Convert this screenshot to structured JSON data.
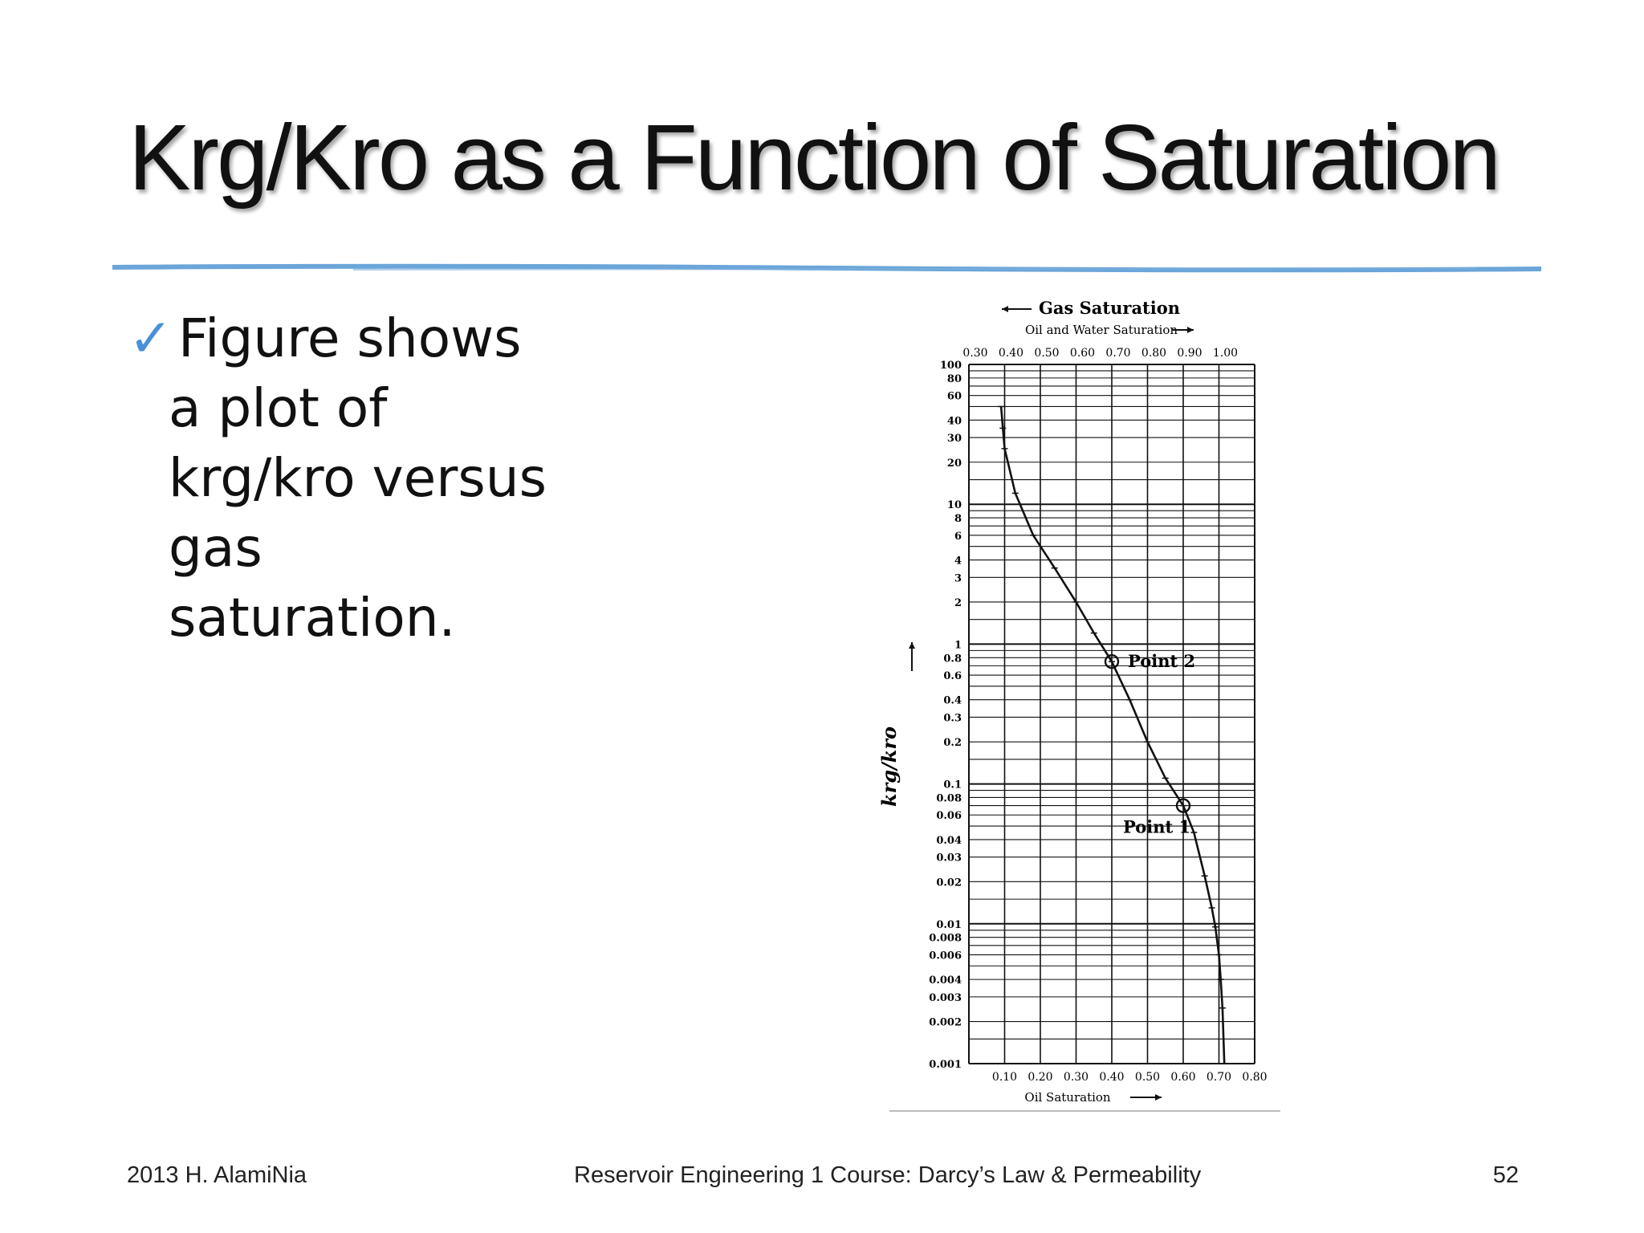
{
  "slide": {
    "title": "Krg/Kro as a Function of Saturation",
    "bullet_icon": "checkmark-icon",
    "bullet_lines": [
      "Figure shows",
      "a plot of",
      "krg/kro versus",
      "gas",
      "saturation."
    ]
  },
  "footer": {
    "left": "2013 H. AlamiNia",
    "center": "Reservoir Engineering 1 Course: Darcy’s Law & Permeability",
    "page": "52"
  },
  "colors": {
    "accent": "#4a90d9",
    "title_rule": "#5b9bd5"
  },
  "chart_data": {
    "type": "line",
    "title": "Gas Saturation",
    "top_axis_label": "Oil and Water Saturation",
    "bottom_axis_label": "Oil Saturation",
    "ylabel": "krg/kro",
    "yscale": "log",
    "ylim": [
      0.001,
      100
    ],
    "xlim": [
      0.0,
      0.8
    ],
    "grid": true,
    "top_ticks": [
      "0.30",
      "0.40",
      "0.50",
      "0.60",
      "0.70",
      "0.80",
      "0.90",
      "1.00"
    ],
    "bottom_ticks": [
      "0.10",
      "0.20",
      "0.30",
      "0.40",
      "0.50",
      "0.60",
      "0.70",
      "0.80"
    ],
    "y_ticks": [
      {
        "v": 100,
        "label": "100"
      },
      {
        "v": 80,
        "label": "80"
      },
      {
        "v": 60,
        "label": "60"
      },
      {
        "v": 40,
        "label": "40"
      },
      {
        "v": 30,
        "label": "30"
      },
      {
        "v": 20,
        "label": "20"
      },
      {
        "v": 10,
        "label": "10"
      },
      {
        "v": 8,
        "label": "8"
      },
      {
        "v": 6,
        "label": "6"
      },
      {
        "v": 4,
        "label": "4"
      },
      {
        "v": 3,
        "label": "3"
      },
      {
        "v": 2,
        "label": "2"
      },
      {
        "v": 1,
        "label": "1"
      },
      {
        "v": 0.8,
        "label": "0.8"
      },
      {
        "v": 0.6,
        "label": "0.6"
      },
      {
        "v": 0.4,
        "label": "0.4"
      },
      {
        "v": 0.3,
        "label": "0.3"
      },
      {
        "v": 0.2,
        "label": "0.2"
      },
      {
        "v": 0.1,
        "label": "0.1"
      },
      {
        "v": 0.08,
        "label": "0.08"
      },
      {
        "v": 0.06,
        "label": "0.06"
      },
      {
        "v": 0.04,
        "label": "0.04"
      },
      {
        "v": 0.03,
        "label": "0.03"
      },
      {
        "v": 0.02,
        "label": "0.02"
      },
      {
        "v": 0.01,
        "label": "0.01"
      },
      {
        "v": 0.008,
        "label": "0.008"
      },
      {
        "v": 0.006,
        "label": "0.006"
      },
      {
        "v": 0.004,
        "label": "0.004"
      },
      {
        "v": 0.003,
        "label": "0.003"
      },
      {
        "v": 0.002,
        "label": "0.002"
      },
      {
        "v": 0.001,
        "label": "0.001"
      }
    ],
    "series": [
      {
        "x": [
          0.09,
          0.095,
          0.1,
          0.13,
          0.18,
          0.24,
          0.3,
          0.35,
          0.4,
          0.45,
          0.5,
          0.55,
          0.6,
          0.63,
          0.66,
          0.68,
          0.69,
          0.7,
          0.705,
          0.71,
          0.715
        ],
        "y": [
          50,
          35,
          25,
          12,
          6,
          3.5,
          2.0,
          1.2,
          0.75,
          0.4,
          0.2,
          0.11,
          0.07,
          0.045,
          0.022,
          0.013,
          0.0095,
          0.006,
          0.004,
          0.0025,
          0.001
        ]
      }
    ],
    "annotations": [
      {
        "label": "Point 2",
        "x": 0.4,
        "y": 0.75
      },
      {
        "label": "Point 1",
        "x": 0.6,
        "y": 0.07
      }
    ]
  }
}
